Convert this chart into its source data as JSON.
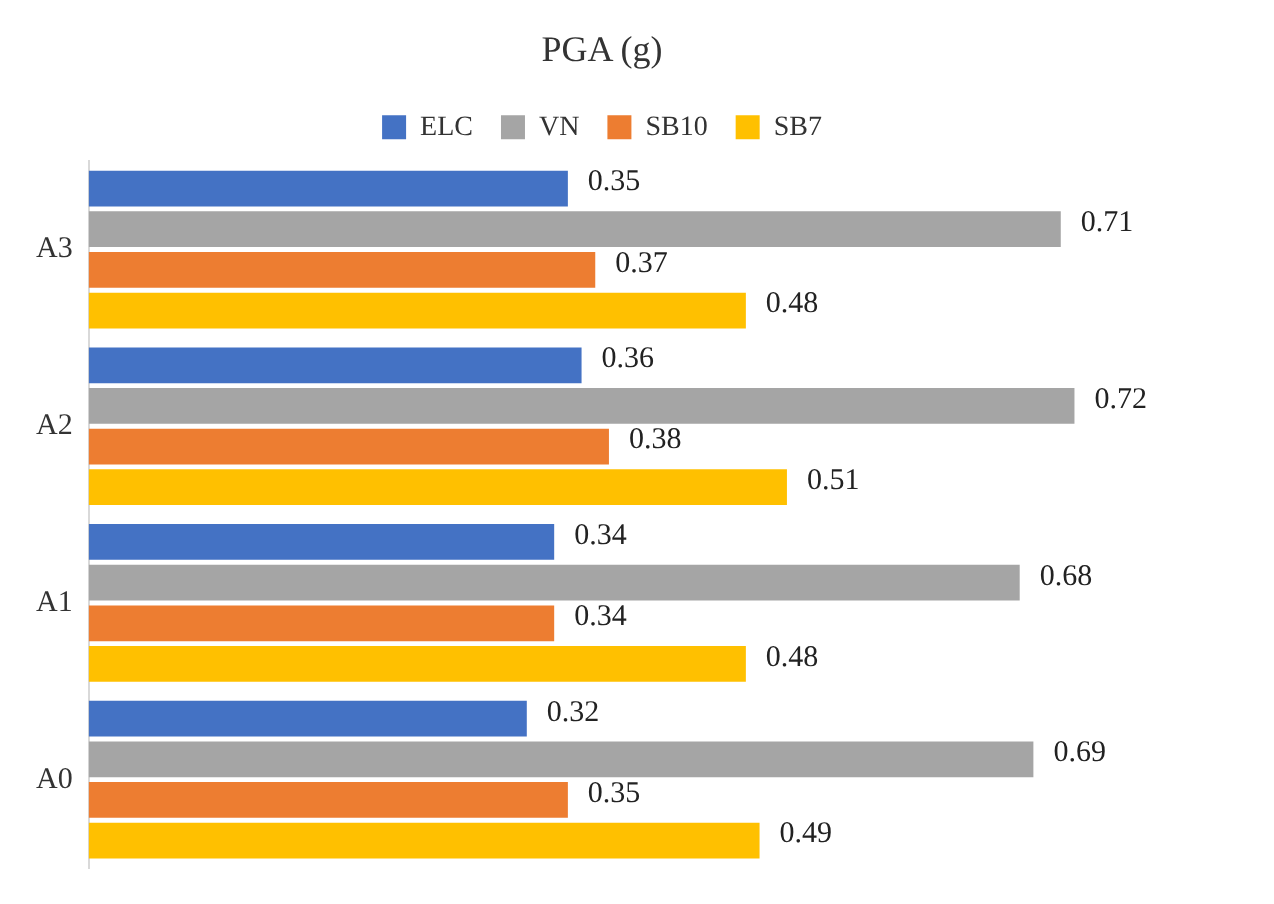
{
  "chart_data": {
    "type": "bar",
    "orientation": "horizontal",
    "title": "PGA (g)",
    "categories": [
      "A3",
      "A2",
      "A1",
      "A0"
    ],
    "series": [
      {
        "name": "ELC",
        "color": "#4472c4",
        "values": [
          0.35,
          0.36,
          0.34,
          0.32
        ]
      },
      {
        "name": "VN",
        "color": "#a5a5a5",
        "values": [
          0.71,
          0.72,
          0.68,
          0.69
        ]
      },
      {
        "name": "SB10",
        "color": "#ed7d31",
        "values": [
          0.37,
          0.38,
          0.34,
          0.35
        ]
      },
      {
        "name": "SB7",
        "color": "#ffc000",
        "values": [
          0.48,
          0.51,
          0.48,
          0.49
        ]
      }
    ],
    "tick_labels": "y",
    "grid": false,
    "legend": "top",
    "data_labels": true
  }
}
